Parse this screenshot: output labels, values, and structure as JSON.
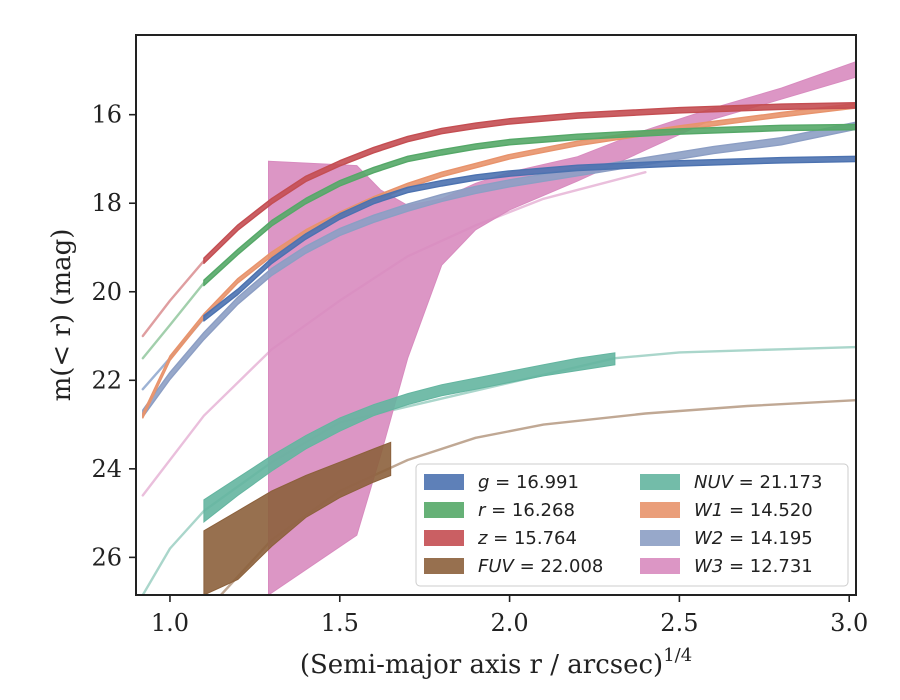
{
  "chart_data": {
    "type": "line",
    "xlabel": "(Semi-major axis r / arcsec)",
    "xlabel_exponent": "1/4",
    "ylabel": "m(< r) (mag)",
    "xlim": [
      0.9,
      3.02
    ],
    "ylim": [
      26.85,
      14.2
    ],
    "y_inverted": true,
    "grid": false,
    "legend_position": "lower-right",
    "x_ticks": [
      1.0,
      1.5,
      2.0,
      2.5,
      3.0
    ],
    "x_tick_labels": [
      "1.0",
      "1.5",
      "2.0",
      "2.5",
      "3.0"
    ],
    "y_ticks": [
      16,
      18,
      20,
      22,
      24,
      26
    ],
    "y_tick_labels": [
      "16",
      "18",
      "20",
      "22",
      "24",
      "26"
    ],
    "series": [
      {
        "name": "g = 16.991",
        "band": "g",
        "value": "16.991",
        "color": "#4c72b0",
        "data_x": [
          1.1,
          1.2,
          1.3,
          1.4,
          1.5,
          1.6,
          1.7,
          1.8,
          1.9,
          2.0,
          2.2,
          2.5,
          2.8,
          3.02
        ],
        "data_y": [
          20.6,
          20.0,
          19.3,
          18.75,
          18.3,
          17.95,
          17.7,
          17.55,
          17.42,
          17.33,
          17.2,
          17.1,
          17.03,
          17.0
        ],
        "data_width": 0.06,
        "model_x": [
          0.92,
          1.0,
          1.1
        ],
        "model_y": [
          22.2,
          21.5,
          20.6
        ]
      },
      {
        "name": "r = 16.268",
        "band": "r",
        "value": "16.268",
        "color": "#55a868",
        "data_x": [
          1.1,
          1.2,
          1.3,
          1.4,
          1.5,
          1.6,
          1.7,
          1.8,
          1.9,
          2.0,
          2.2,
          2.5,
          2.8,
          3.02
        ],
        "data_y": [
          19.8,
          19.1,
          18.45,
          17.95,
          17.55,
          17.25,
          17.0,
          16.85,
          16.72,
          16.62,
          16.5,
          16.38,
          16.3,
          16.28
        ],
        "data_width": 0.06,
        "model_x": [
          0.92,
          1.0,
          1.1
        ],
        "model_y": [
          21.5,
          20.75,
          19.8
        ]
      },
      {
        "name": "z = 15.764",
        "band": "z",
        "value": "15.764",
        "color": "#c44e52",
        "data_x": [
          1.1,
          1.2,
          1.3,
          1.4,
          1.5,
          1.6,
          1.7,
          1.8,
          1.9,
          2.0,
          2.2,
          2.5,
          2.8,
          3.02
        ],
        "data_y": [
          19.3,
          18.55,
          17.95,
          17.45,
          17.1,
          16.8,
          16.55,
          16.37,
          16.25,
          16.15,
          16.02,
          15.9,
          15.82,
          15.79
        ],
        "data_width": 0.06,
        "model_x": [
          0.92,
          1.0,
          1.1
        ],
        "model_y": [
          21.0,
          20.2,
          19.3
        ]
      },
      {
        "name": "FUV = 22.008",
        "band": "FUV",
        "value": "22.008",
        "color": "#8c613c",
        "band_x": [
          1.1,
          1.2,
          1.3,
          1.4,
          1.5,
          1.6,
          1.65
        ],
        "band_upper": [
          25.4,
          24.95,
          24.5,
          24.15,
          23.85,
          23.55,
          23.4
        ],
        "band_lower": [
          26.85,
          26.5,
          25.75,
          25.1,
          24.65,
          24.3,
          24.15
        ],
        "model_x": [
          1.15,
          1.3,
          1.5,
          1.7,
          1.9,
          2.1,
          2.4,
          2.7,
          3.02
        ],
        "model_y": [
          26.85,
          25.6,
          24.5,
          23.8,
          23.3,
          23.0,
          22.75,
          22.58,
          22.45
        ]
      },
      {
        "name": "NUV = 21.173",
        "band": "NUV",
        "value": "21.173",
        "color": "#64b5a0",
        "band_x": [
          1.1,
          1.2,
          1.3,
          1.4,
          1.5,
          1.6,
          1.7,
          1.8,
          1.9,
          2.0,
          2.1,
          2.2,
          2.31
        ],
        "band_upper": [
          24.7,
          24.2,
          23.7,
          23.25,
          22.85,
          22.55,
          22.3,
          22.1,
          21.95,
          21.8,
          21.65,
          21.5,
          21.38
        ],
        "band_lower": [
          25.2,
          24.6,
          24.05,
          23.55,
          23.15,
          22.8,
          22.55,
          22.35,
          22.2,
          22.05,
          21.9,
          21.78,
          21.65
        ],
        "model_x": [
          0.92,
          1.0,
          1.1,
          1.2,
          1.3,
          1.5,
          2.31,
          2.5,
          2.8,
          3.02
        ],
        "model_y": [
          26.85,
          25.8,
          24.95,
          24.4,
          23.85,
          22.95,
          21.5,
          21.37,
          21.3,
          21.25
        ]
      },
      {
        "name": "W1 = 14.520",
        "band": "W1",
        "value": "14.520",
        "color": "#e8936c",
        "data_x": [
          0.92,
          1.0,
          1.1,
          1.2,
          1.3,
          1.4,
          1.5,
          1.6,
          1.7,
          1.8,
          1.9,
          2.0,
          2.2,
          2.5,
          2.8,
          3.02
        ],
        "data_y": [
          22.8,
          21.5,
          20.55,
          19.75,
          19.15,
          18.65,
          18.25,
          17.9,
          17.6,
          17.35,
          17.15,
          16.95,
          16.65,
          16.3,
          16.0,
          15.8
        ],
        "data_width": 0.05
      },
      {
        "name": "W2 = 14.195",
        "band": "W2",
        "value": "14.195",
        "color": "#8c9ec4",
        "data_x": [
          0.92,
          1.0,
          1.1,
          1.2,
          1.3,
          1.4,
          1.5,
          1.6,
          1.7,
          1.8,
          1.9,
          2.0,
          2.2,
          2.4,
          2.6,
          2.8,
          3.02
        ],
        "data_y": [
          22.75,
          21.9,
          21.0,
          20.2,
          19.55,
          19.05,
          18.65,
          18.35,
          18.1,
          17.88,
          17.7,
          17.55,
          17.3,
          17.05,
          16.8,
          16.6,
          16.25
        ],
        "data_width": 0.08
      },
      {
        "name": "W3 = 12.731",
        "band": "W3",
        "value": "12.731",
        "color": "#d88bbf",
        "band_x": [
          1.29,
          1.55,
          1.62,
          1.7,
          1.8,
          1.9,
          2.0,
          2.2,
          2.4,
          2.6,
          2.8,
          3.02
        ],
        "band_upper": [
          17.05,
          17.15,
          17.7,
          18.05,
          17.9,
          17.55,
          17.3,
          16.95,
          16.35,
          15.85,
          15.4,
          14.8
        ],
        "band_lower": [
          26.85,
          25.5,
          23.7,
          21.5,
          19.4,
          18.6,
          18.15,
          17.5,
          16.8,
          16.1,
          15.65,
          15.15
        ],
        "model_x": [
          0.92,
          1.1,
          1.3,
          1.5,
          1.7,
          1.9,
          2.1,
          2.4
        ],
        "model_y": [
          24.6,
          22.8,
          21.3,
          20.2,
          19.2,
          18.5,
          17.9,
          17.3
        ]
      }
    ],
    "legend": {
      "columns": [
        [
          "g",
          "r",
          "z",
          "FUV"
        ],
        [
          "NUV",
          "W1",
          "W2",
          "W3"
        ]
      ]
    }
  }
}
